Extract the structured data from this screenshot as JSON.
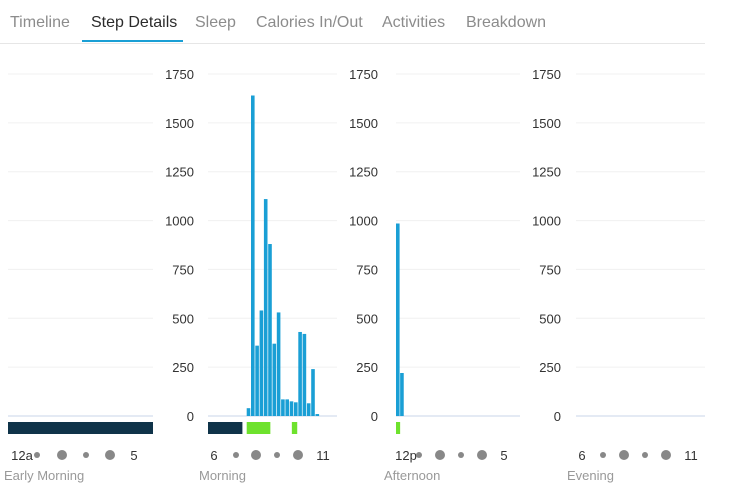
{
  "tabs": [
    {
      "label": "Timeline",
      "active": false
    },
    {
      "label": "Step Details",
      "active": true
    },
    {
      "label": "Sleep",
      "active": false
    },
    {
      "label": "Calories In/Out",
      "active": false
    },
    {
      "label": "Activities",
      "active": false
    },
    {
      "label": "Breakdown",
      "active": false
    }
  ],
  "colors": {
    "accent": "#1a9fd5",
    "steps_bar": "#1a9fd5",
    "sleep_band": "#0f3349",
    "active_band": "#6ee22d",
    "dot": "#888888",
    "tick_text": "#333333",
    "period_label": "#999999"
  },
  "chart_data": [
    {
      "type": "bar",
      "period": "Early Morning",
      "ylim": [
        0,
        1750
      ],
      "yticks": [
        "1750",
        "1500",
        "1250",
        "1000",
        "750",
        "500",
        "250",
        "0"
      ],
      "show_yticks": false,
      "time_range_hours": [
        0,
        6
      ],
      "start_label": "12a",
      "end_label": "5",
      "timeline_dots": [
        "small",
        "large",
        "small",
        "large"
      ],
      "bars": [],
      "sleep_segments": [
        [
          0,
          6
        ]
      ],
      "active_segments": []
    },
    {
      "type": "bar",
      "period": "Morning",
      "ylim": [
        0,
        1750
      ],
      "yticks": [
        "1750",
        "1500",
        "1250",
        "1000",
        "750",
        "500",
        "250",
        "0"
      ],
      "show_yticks": true,
      "time_range_hours": [
        6,
        12
      ],
      "start_label": "6",
      "end_label": "11",
      "timeline_dots": [
        "small",
        "large",
        "small",
        "large"
      ],
      "bars": [
        {
          "hour": 7.8,
          "value": 40
        },
        {
          "hour": 8.0,
          "value": 1640
        },
        {
          "hour": 8.2,
          "value": 360
        },
        {
          "hour": 8.4,
          "value": 540
        },
        {
          "hour": 8.6,
          "value": 1110
        },
        {
          "hour": 8.8,
          "value": 880
        },
        {
          "hour": 9.0,
          "value": 370
        },
        {
          "hour": 9.2,
          "value": 530
        },
        {
          "hour": 9.4,
          "value": 85
        },
        {
          "hour": 9.6,
          "value": 85
        },
        {
          "hour": 9.8,
          "value": 75
        },
        {
          "hour": 10.0,
          "value": 70
        },
        {
          "hour": 10.2,
          "value": 430
        },
        {
          "hour": 10.4,
          "value": 420
        },
        {
          "hour": 10.6,
          "value": 65
        },
        {
          "hour": 10.8,
          "value": 240
        },
        {
          "hour": 11.0,
          "value": 10
        }
      ],
      "sleep_segments": [
        [
          6,
          7.6
        ]
      ],
      "active_segments": [
        [
          7.8,
          8.9
        ],
        [
          9.9,
          10.15
        ]
      ]
    },
    {
      "type": "bar",
      "period": "Afternoon",
      "ylim": [
        0,
        1750
      ],
      "yticks": [
        "1750",
        "1500",
        "1250",
        "1000",
        "750",
        "500",
        "250",
        "0"
      ],
      "show_yticks": true,
      "time_range_hours": [
        12,
        18
      ],
      "start_label": "12p",
      "end_label": "5",
      "timeline_dots": [
        "small",
        "large",
        "small",
        "large"
      ],
      "bars": [
        {
          "hour": 12.0,
          "value": 985
        },
        {
          "hour": 12.2,
          "value": 220
        }
      ],
      "sleep_segments": [],
      "active_segments": [
        [
          12.0,
          12.2
        ]
      ]
    },
    {
      "type": "bar",
      "period": "Evening",
      "ylim": [
        0,
        1750
      ],
      "yticks": [
        "1750",
        "1500",
        "1250",
        "1000",
        "750",
        "500",
        "250",
        "0"
      ],
      "show_yticks": true,
      "time_range_hours": [
        18,
        24
      ],
      "start_label": "6",
      "end_label": "11",
      "timeline_dots": [
        "small",
        "large",
        "small",
        "large"
      ],
      "bars": [],
      "sleep_segments": [],
      "active_segments": []
    }
  ]
}
